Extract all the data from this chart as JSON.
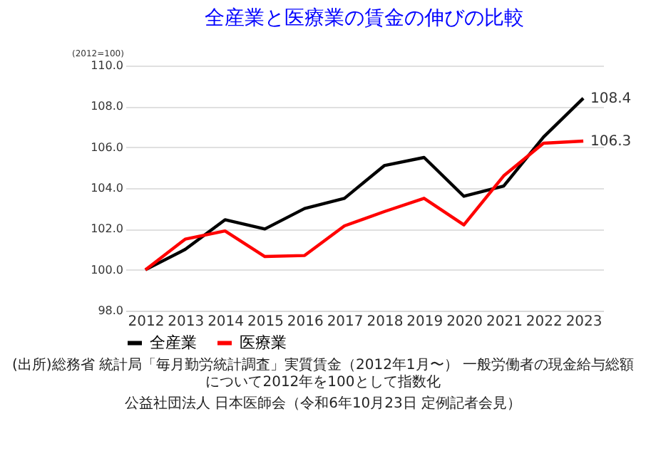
{
  "chart_data": {
    "type": "line",
    "title": "全産業と医療業の賃金の伸びの比較",
    "ylabel": "(2012=100)",
    "categories": [
      "2012",
      "2013",
      "2014",
      "2015",
      "2016",
      "2017",
      "2018",
      "2019",
      "2020",
      "2021",
      "2022",
      "2023"
    ],
    "series": [
      {
        "name": "全産業",
        "color": "#000000",
        "values": [
          100.0,
          101.0,
          102.45,
          102.0,
          103.0,
          103.5,
          105.1,
          105.5,
          103.6,
          104.1,
          106.5,
          108.4
        ],
        "value_labels": [
          null,
          null,
          null,
          null,
          null,
          null,
          null,
          null,
          null,
          null,
          null,
          "108.4"
        ]
      },
      {
        "name": "医療業",
        "color": "#ff0000",
        "values": [
          100.0,
          101.5,
          101.9,
          100.65,
          100.7,
          102.15,
          102.85,
          103.5,
          102.2,
          104.6,
          106.2,
          106.3
        ],
        "value_labels": [
          null,
          null,
          null,
          null,
          null,
          null,
          null,
          null,
          null,
          null,
          null,
          "106.3"
        ]
      }
    ],
    "ylim": [
      98,
      110
    ],
    "yticks": [
      {
        "value": 98,
        "label": "98.0"
      },
      {
        "value": 100,
        "label": "100.0"
      },
      {
        "value": 102,
        "label": "102.0"
      },
      {
        "value": 104,
        "label": "104.0"
      },
      {
        "value": 106,
        "label": "106.0"
      },
      {
        "value": 108,
        "label": "108.0"
      },
      {
        "value": 110,
        "label": "110.0"
      }
    ],
    "grid": "y",
    "legend": "bottom",
    "marker": "none",
    "line_style": "solid",
    "annotations": [
      "(出所)総務省 統計局「毎月勤労統計調査」実質賃金（2012年1月〜） 一般労働者の現金給与総額について2012年を100として指数化",
      "公益社団法人 日本医師会（令和6年10月23日 定例記者会見）"
    ]
  }
}
